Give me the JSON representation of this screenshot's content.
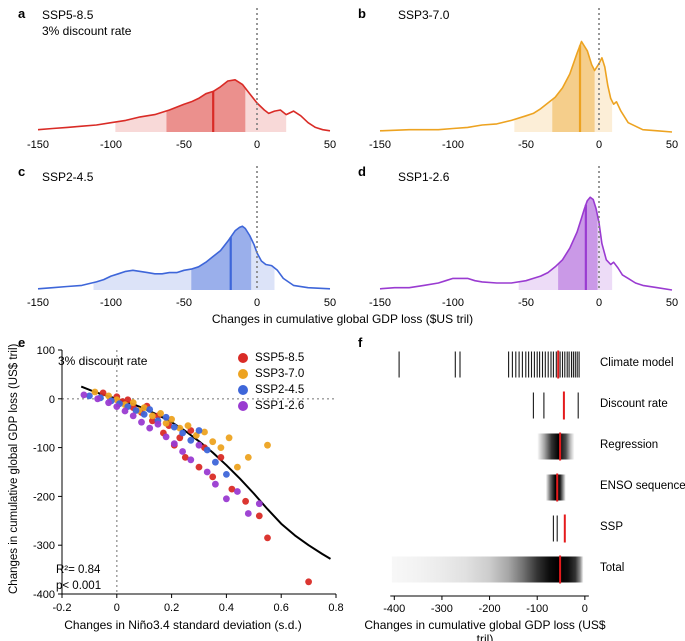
{
  "labels": {
    "shared_density_xlabel": "Changes in cumulative global GDP loss ($US tril)"
  },
  "chart_data": [
    {
      "id": "a",
      "type": "area",
      "panel_label": "a",
      "title": "SSP5-8.5",
      "subtitle": "3% discount rate",
      "color": "#d92b26",
      "xlim": [
        -150,
        50
      ],
      "xticks": [
        -150,
        -100,
        -50,
        0,
        50
      ],
      "refline": 0,
      "median": -30,
      "inner_band": [
        -62,
        -8
      ],
      "outer_band": [
        -97,
        20
      ],
      "x": [
        -150,
        -140,
        -130,
        -120,
        -110,
        -100,
        -90,
        -80,
        -70,
        -60,
        -50,
        -45,
        -40,
        -35,
        -30,
        -25,
        -20,
        -15,
        -10,
        -5,
        0,
        5,
        8,
        12,
        16,
        20,
        25,
        30,
        35,
        40,
        45,
        50
      ],
      "y": [
        0.02,
        0.03,
        0.04,
        0.05,
        0.06,
        0.08,
        0.1,
        0.13,
        0.15,
        0.19,
        0.24,
        0.26,
        0.29,
        0.33,
        0.35,
        0.39,
        0.44,
        0.45,
        0.41,
        0.33,
        0.25,
        0.19,
        0.16,
        0.18,
        0.19,
        0.15,
        0.18,
        0.14,
        0.08,
        0.04,
        0.02,
        0.01
      ]
    },
    {
      "id": "b",
      "type": "area",
      "panel_label": "b",
      "title": "SSP3-7.0",
      "color": "#eda321",
      "xlim": [
        -150,
        50
      ],
      "xticks": [
        -150,
        -100,
        -50,
        0,
        50
      ],
      "refline": 0,
      "median": -13,
      "inner_band": [
        -32,
        -3
      ],
      "outer_band": [
        -58,
        9
      ],
      "x": [
        -150,
        -130,
        -110,
        -100,
        -90,
        -80,
        -70,
        -60,
        -50,
        -45,
        -40,
        -35,
        -30,
        -25,
        -20,
        -15,
        -12,
        -8,
        -5,
        -3,
        0,
        2,
        4,
        6,
        8,
        10,
        12,
        15,
        20,
        25,
        30,
        40,
        50
      ],
      "y": [
        0.01,
        0.02,
        0.02,
        0.03,
        0.04,
        0.06,
        0.07,
        0.1,
        0.14,
        0.16,
        0.2,
        0.25,
        0.3,
        0.38,
        0.5,
        0.68,
        0.78,
        0.7,
        0.58,
        0.53,
        0.59,
        0.64,
        0.56,
        0.4,
        0.29,
        0.24,
        0.26,
        0.18,
        0.08,
        0.05,
        0.02,
        0.01,
        0.0
      ]
    },
    {
      "id": "c",
      "type": "area",
      "panel_label": "c",
      "title": "SSP2-4.5",
      "color": "#3e66d9",
      "xlim": [
        -150,
        50
      ],
      "xticks": [
        -150,
        -100,
        -50,
        0,
        50
      ],
      "refline": 0,
      "median": -18,
      "inner_band": [
        -45,
        -4
      ],
      "outer_band": [
        -112,
        12
      ],
      "x": [
        -150,
        -140,
        -130,
        -120,
        -110,
        -105,
        -100,
        -95,
        -90,
        -85,
        -80,
        -75,
        -70,
        -65,
        -60,
        -55,
        -50,
        -45,
        -40,
        -35,
        -30,
        -25,
        -20,
        -15,
        -12,
        -10,
        -8,
        -5,
        -2,
        0,
        3,
        6,
        10,
        14,
        18,
        25,
        35,
        50
      ],
      "y": [
        0.01,
        0.02,
        0.03,
        0.04,
        0.07,
        0.09,
        0.12,
        0.14,
        0.16,
        0.17,
        0.16,
        0.15,
        0.14,
        0.14,
        0.15,
        0.15,
        0.17,
        0.18,
        0.2,
        0.24,
        0.29,
        0.34,
        0.42,
        0.51,
        0.54,
        0.55,
        0.53,
        0.47,
        0.39,
        0.32,
        0.25,
        0.22,
        0.21,
        0.17,
        0.1,
        0.04,
        0.02,
        0.01
      ]
    },
    {
      "id": "d",
      "type": "area",
      "panel_label": "d",
      "title": "SSP1-2.6",
      "color": "#9a3bd1",
      "xlim": [
        -150,
        50
      ],
      "xticks": [
        -150,
        -100,
        -50,
        0,
        50
      ],
      "refline": 0,
      "median": -9,
      "inner_band": [
        -28,
        -1
      ],
      "outer_band": [
        -55,
        9
      ],
      "x": [
        -150,
        -140,
        -130,
        -120,
        -110,
        -105,
        -100,
        -95,
        -90,
        -85,
        -80,
        -70,
        -60,
        -50,
        -45,
        -40,
        -35,
        -30,
        -25,
        -20,
        -15,
        -12,
        -10,
        -8,
        -6,
        -4,
        -2,
        0,
        2,
        5,
        8,
        10,
        13,
        16,
        20,
        25,
        30,
        40,
        50
      ],
      "y": [
        0.01,
        0.02,
        0.02,
        0.04,
        0.06,
        0.08,
        0.1,
        0.1,
        0.1,
        0.08,
        0.07,
        0.06,
        0.06,
        0.08,
        0.1,
        0.12,
        0.15,
        0.2,
        0.26,
        0.36,
        0.5,
        0.62,
        0.7,
        0.77,
        0.8,
        0.78,
        0.7,
        0.58,
        0.4,
        0.26,
        0.22,
        0.24,
        0.19,
        0.13,
        0.1,
        0.06,
        0.04,
        0.02,
        0.0
      ]
    },
    {
      "id": "e",
      "type": "scatter",
      "panel_label": "e",
      "title": "3% discount rate",
      "xlabel": "Changes in Niño3.4 standard deviation (s.d.)",
      "ylabel": "Changes in cumulative global GDP loss (US$ tril)",
      "xlim": [
        -0.2,
        0.8
      ],
      "ylim": [
        -400,
        100
      ],
      "xticks": [
        -0.2,
        0,
        0.2,
        0.4,
        0.6,
        0.8
      ],
      "yticks": [
        -400,
        -300,
        -200,
        -100,
        0,
        100
      ],
      "annotations": {
        "r2": "R²= 0.84",
        "p": "p< 0.001"
      },
      "fit_curve": [
        [
          -0.13,
          25
        ],
        [
          -0.08,
          14
        ],
        [
          -0.04,
          7
        ],
        [
          0,
          0
        ],
        [
          0.05,
          -9
        ],
        [
          0.1,
          -20
        ],
        [
          0.15,
          -33
        ],
        [
          0.2,
          -48
        ],
        [
          0.25,
          -66
        ],
        [
          0.3,
          -87
        ],
        [
          0.35,
          -110
        ],
        [
          0.4,
          -136
        ],
        [
          0.45,
          -164
        ],
        [
          0.5,
          -194
        ],
        [
          0.55,
          -226
        ],
        [
          0.6,
          -256
        ],
        [
          0.65,
          -280
        ],
        [
          0.7,
          -300
        ],
        [
          0.75,
          -318
        ],
        [
          0.78,
          -328
        ]
      ],
      "series": [
        {
          "name": "SSP5-8.5",
          "color": "#d92b26",
          "points": [
            [
              -0.05,
              12
            ],
            [
              0,
              4
            ],
            [
              0.02,
              -6
            ],
            [
              0.04,
              -2
            ],
            [
              0.06,
              -18
            ],
            [
              0.09,
              -28
            ],
            [
              0.11,
              -15
            ],
            [
              0.13,
              -45
            ],
            [
              0.15,
              -35
            ],
            [
              0.17,
              -70
            ],
            [
              0.19,
              -55
            ],
            [
              0.21,
              -95
            ],
            [
              0.23,
              -80
            ],
            [
              0.25,
              -120
            ],
            [
              0.27,
              -65
            ],
            [
              0.3,
              -140
            ],
            [
              0.32,
              -100
            ],
            [
              0.35,
              -160
            ],
            [
              0.38,
              -120
            ],
            [
              0.42,
              -185
            ],
            [
              0.47,
              -210
            ],
            [
              0.52,
              -240
            ],
            [
              0.55,
              -285
            ],
            [
              0.7,
              -375
            ]
          ]
        },
        {
          "name": "SSP3-7.0",
          "color": "#eda321",
          "points": [
            [
              -0.08,
              14
            ],
            [
              -0.03,
              6
            ],
            [
              0,
              -2
            ],
            [
              0.03,
              -12
            ],
            [
              0.06,
              -8
            ],
            [
              0.08,
              -24
            ],
            [
              0.1,
              -18
            ],
            [
              0.13,
              -35
            ],
            [
              0.16,
              -30
            ],
            [
              0.18,
              -50
            ],
            [
              0.2,
              -42
            ],
            [
              0.23,
              -60
            ],
            [
              0.26,
              -55
            ],
            [
              0.29,
              -75
            ],
            [
              0.32,
              -68
            ],
            [
              0.35,
              -88
            ],
            [
              0.38,
              -100
            ],
            [
              0.41,
              -80
            ],
            [
              0.44,
              -140
            ],
            [
              0.48,
              -120
            ],
            [
              0.55,
              -95
            ]
          ]
        },
        {
          "name": "SSP2-4.5",
          "color": "#3e66d9",
          "points": [
            [
              -0.1,
              6
            ],
            [
              -0.06,
              2
            ],
            [
              -0.02,
              -4
            ],
            [
              0.01,
              -10
            ],
            [
              0.04,
              -16
            ],
            [
              0.07,
              -24
            ],
            [
              0.1,
              -32
            ],
            [
              0.12,
              -22
            ],
            [
              0.15,
              -45
            ],
            [
              0.18,
              -38
            ],
            [
              0.21,
              -58
            ],
            [
              0.24,
              -70
            ],
            [
              0.27,
              -85
            ],
            [
              0.3,
              -65
            ],
            [
              0.33,
              -105
            ],
            [
              0.36,
              -130
            ],
            [
              0.4,
              -155
            ]
          ]
        },
        {
          "name": "SSP1-2.6",
          "color": "#9a3bd1",
          "points": [
            [
              -0.12,
              8
            ],
            [
              -0.07,
              0
            ],
            [
              -0.03,
              -8
            ],
            [
              0,
              -16
            ],
            [
              0.03,
              -25
            ],
            [
              0.06,
              -35
            ],
            [
              0.09,
              -48
            ],
            [
              0.12,
              -60
            ],
            [
              0.15,
              -52
            ],
            [
              0.18,
              -78
            ],
            [
              0.21,
              -92
            ],
            [
              0.24,
              -108
            ],
            [
              0.27,
              -125
            ],
            [
              0.3,
              -95
            ],
            [
              0.33,
              -150
            ],
            [
              0.36,
              -175
            ],
            [
              0.4,
              -205
            ],
            [
              0.44,
              -190
            ],
            [
              0.48,
              -235
            ],
            [
              0.52,
              -215
            ]
          ]
        }
      ]
    },
    {
      "id": "f",
      "type": "rug",
      "panel_label": "f",
      "xlabel": "Changes in cumulative global GDP loss (US$ tril)",
      "xlim": [
        -430,
        15
      ],
      "xticks": [
        -400,
        -300,
        -200,
        -100,
        0
      ],
      "red_color": "#e41a1c",
      "rows": [
        {
          "label": "Climate model",
          "red": -56,
          "ticks": [
            -390,
            -272,
            -262,
            -160,
            -152,
            -145,
            -138,
            -131,
            -124,
            -118,
            -112,
            -106,
            -100,
            -95,
            -89,
            -83,
            -77,
            -71,
            -66,
            -60,
            -52,
            -47,
            -42,
            -37,
            -33,
            -28,
            -24,
            -20,
            -16,
            -12
          ]
        },
        {
          "label": "Discount rate",
          "red": -44,
          "ticks": [
            -108,
            -86,
            -14
          ]
        },
        {
          "label": "Regression",
          "red": -52,
          "gradient": [
            [
              -100,
              0
            ],
            [
              -85,
              0.35
            ],
            [
              -70,
              0.8
            ],
            [
              -55,
              1
            ],
            [
              -40,
              0.7
            ],
            [
              -30,
              0.25
            ],
            [
              -22,
              0
            ]
          ]
        },
        {
          "label": "ENSO sequence",
          "red": -58,
          "gradient": [
            [
              -82,
              0
            ],
            [
              -72,
              0.6
            ],
            [
              -62,
              1
            ],
            [
              -52,
              0.9
            ],
            [
              -44,
              0.3
            ],
            [
              -40,
              0
            ]
          ]
        },
        {
          "label": "SSP",
          "red": -42,
          "ticks": [
            -66,
            -58
          ]
        },
        {
          "label": "Total",
          "red": -52,
          "gradient": [
            [
              -405,
              0.03
            ],
            [
              -350,
              0.05
            ],
            [
              -300,
              0.08
            ],
            [
              -250,
              0.12
            ],
            [
              -200,
              0.2
            ],
            [
              -160,
              0.35
            ],
            [
              -130,
              0.55
            ],
            [
              -100,
              0.8
            ],
            [
              -75,
              0.95
            ],
            [
              -55,
              1
            ],
            [
              -35,
              0.95
            ],
            [
              -20,
              0.8
            ],
            [
              -10,
              0.45
            ],
            [
              -3,
              0
            ]
          ]
        }
      ]
    }
  ]
}
